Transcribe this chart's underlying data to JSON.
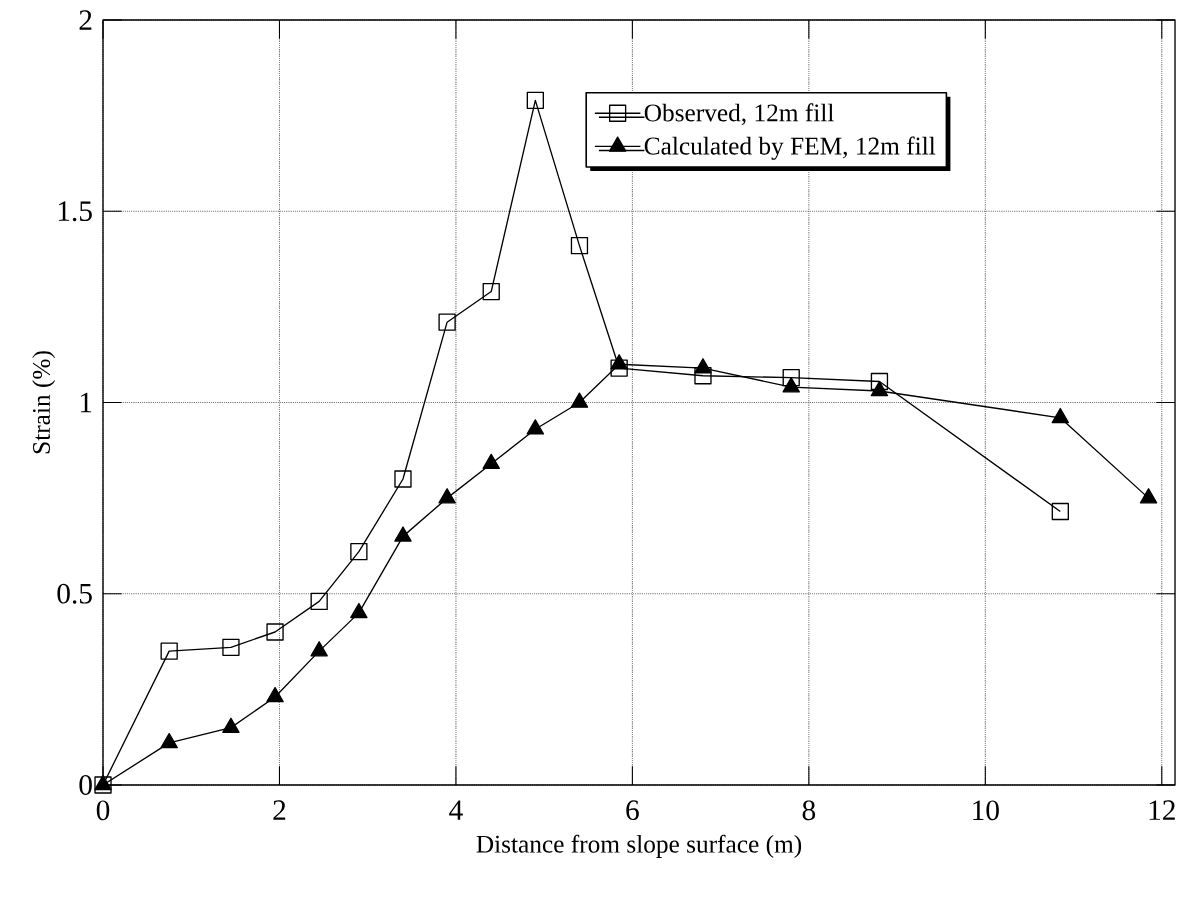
{
  "chart_data": {
    "type": "line",
    "xlabel": "Distance from slope surface (m)",
    "ylabel": "Strain (%)",
    "xlim": [
      0,
      12.15
    ],
    "ylim": [
      0,
      2
    ],
    "xticks": [
      0,
      2,
      4,
      6,
      8,
      10,
      12
    ],
    "yticks": [
      0,
      0.5,
      1,
      1.5,
      2
    ],
    "grid": true,
    "legend": "top right",
    "series": [
      {
        "name": "Observed, 12m fill",
        "color": "#000000",
        "marker": "square",
        "x": [
          0,
          0.75,
          1.45,
          1.95,
          2.45,
          2.9,
          3.4,
          3.9,
          4.4,
          4.9,
          5.4,
          5.85,
          6.8,
          7.8,
          8.8,
          10.85
        ],
        "values": [
          0,
          0.35,
          0.36,
          0.4,
          0.48,
          0.61,
          0.8,
          1.21,
          1.29,
          1.79,
          1.41,
          1.09,
          1.07,
          1.065,
          1.055,
          0.715
        ]
      },
      {
        "name": "Calculated by FEM, 12m fill",
        "color": "#000000",
        "marker": "triangle",
        "x": [
          0,
          0.75,
          1.45,
          1.95,
          2.45,
          2.9,
          3.4,
          3.9,
          4.4,
          4.9,
          5.4,
          5.85,
          6.8,
          7.8,
          8.8,
          10.85,
          11.85
        ],
        "values": [
          0,
          0.11,
          0.15,
          0.23,
          0.35,
          0.45,
          0.65,
          0.75,
          0.84,
          0.93,
          1.0,
          1.1,
          1.09,
          1.04,
          1.03,
          0.96,
          0.75
        ]
      }
    ]
  }
}
